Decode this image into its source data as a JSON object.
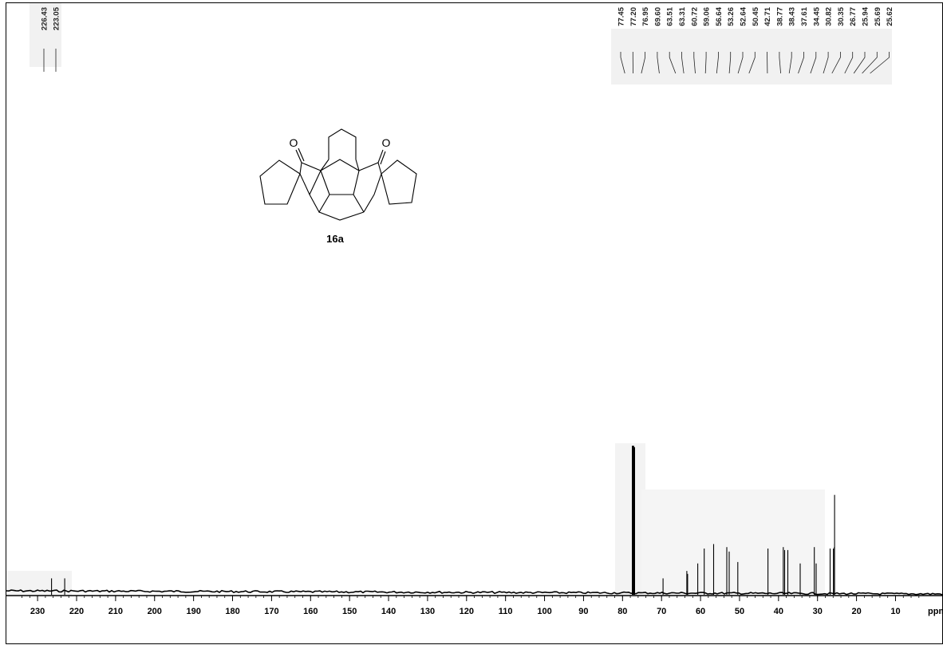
{
  "chart_data": {
    "type": "nmr_spectrum",
    "x_unit": "ppm",
    "x_range": [
      235,
      3
    ],
    "x_ticks": [
      230,
      220,
      210,
      200,
      190,
      180,
      170,
      160,
      150,
      140,
      130,
      120,
      110,
      100,
      90,
      80,
      70,
      60,
      50,
      40,
      30,
      20,
      10
    ],
    "compound_label": "16a",
    "peak_labels_left": [
      "226.43",
      "223.05"
    ],
    "peak_labels_right": [
      "77.45",
      "77.20",
      "76.95",
      "69.60",
      "63.51",
      "63.31",
      "60.72",
      "59.06",
      "56.64",
      "53.26",
      "52.64",
      "50.45",
      "42.71",
      "38.77",
      "38.43",
      "37.61",
      "34.45",
      "30.82",
      "30.35",
      "26.77",
      "25.94",
      "25.69",
      "25.62"
    ],
    "peaks": [
      {
        "ppm": 226.43,
        "intensity": 0.11
      },
      {
        "ppm": 223.05,
        "intensity": 0.11
      },
      {
        "ppm": 77.45,
        "intensity": 1.0
      },
      {
        "ppm": 77.2,
        "intensity": 1.0
      },
      {
        "ppm": 76.95,
        "intensity": 0.99
      },
      {
        "ppm": 69.6,
        "intensity": 0.11
      },
      {
        "ppm": 63.51,
        "intensity": 0.16
      },
      {
        "ppm": 63.31,
        "intensity": 0.14
      },
      {
        "ppm": 60.72,
        "intensity": 0.21
      },
      {
        "ppm": 59.06,
        "intensity": 0.31
      },
      {
        "ppm": 56.64,
        "intensity": 0.34
      },
      {
        "ppm": 53.26,
        "intensity": 0.32
      },
      {
        "ppm": 52.64,
        "intensity": 0.29
      },
      {
        "ppm": 50.45,
        "intensity": 0.22
      },
      {
        "ppm": 42.71,
        "intensity": 0.31
      },
      {
        "ppm": 38.77,
        "intensity": 0.32
      },
      {
        "ppm": 38.43,
        "intensity": 0.3
      },
      {
        "ppm": 37.61,
        "intensity": 0.3
      },
      {
        "ppm": 34.45,
        "intensity": 0.21
      },
      {
        "ppm": 30.82,
        "intensity": 0.32
      },
      {
        "ppm": 30.35,
        "intensity": 0.21
      },
      {
        "ppm": 26.77,
        "intensity": 0.31
      },
      {
        "ppm": 25.94,
        "intensity": 0.31
      },
      {
        "ppm": 25.69,
        "intensity": 0.32
      },
      {
        "ppm": 25.62,
        "intensity": 0.67
      }
    ]
  }
}
